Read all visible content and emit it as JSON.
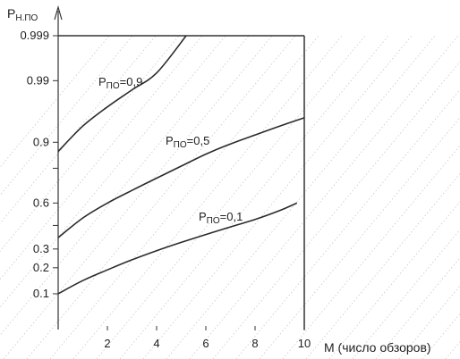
{
  "chart_data": {
    "type": "line",
    "title": "",
    "xlabel": "M (число обзоров)",
    "ylabel": {
      "main": "P",
      "sub": "Н.ПО"
    },
    "yscale": "probability",
    "xlim": [
      0,
      10
    ],
    "ylim": [
      0.06,
      0.999
    ],
    "grid": true,
    "legend": "none",
    "x_ticks": [
      {
        "value": 2,
        "label": "2"
      },
      {
        "value": 4,
        "label": "4"
      },
      {
        "value": 6,
        "label": "6"
      },
      {
        "value": 8,
        "label": "8"
      },
      {
        "value": 10,
        "label": "10"
      }
    ],
    "y_ticks": [
      {
        "value": 0.1,
        "label": "0.1"
      },
      {
        "value": 0.2,
        "label": "0.2"
      },
      {
        "value": 0.3,
        "label": "0.3"
      },
      {
        "value": 0.45,
        "label": ""
      },
      {
        "value": 0.6,
        "label": "0.6"
      },
      {
        "value": 0.8,
        "label": ""
      },
      {
        "value": 0.9,
        "label": "0.9"
      },
      {
        "value": 0.99,
        "label": "0.99"
      },
      {
        "value": 0.999,
        "label": "0.999"
      }
    ],
    "series": [
      {
        "label_main": "P",
        "label_sub": "ПО",
        "label_value": "=0,9",
        "x": [
          0,
          1,
          2,
          3,
          4,
          5.2
        ],
        "values": [
          0.87,
          0.94,
          0.97,
          0.985,
          0.993,
          0.999
        ]
      },
      {
        "label_main": "P",
        "label_sub": "ПО",
        "label_value": "=0,5",
        "x": [
          0,
          1,
          2,
          3,
          4,
          5,
          6,
          7,
          8,
          9,
          10
        ],
        "values": [
          0.37,
          0.5,
          0.6,
          0.68,
          0.75,
          0.81,
          0.86,
          0.895,
          0.92,
          0.94,
          0.955
        ]
      },
      {
        "label_main": "P",
        "label_sub": "ПО",
        "label_value": "=0,1",
        "x": [
          0,
          1,
          2,
          3,
          4,
          5,
          6,
          7,
          8,
          9,
          9.7
        ],
        "values": [
          0.1,
          0.145,
          0.19,
          0.24,
          0.29,
          0.34,
          0.39,
          0.44,
          0.49,
          0.55,
          0.6
        ]
      }
    ]
  }
}
